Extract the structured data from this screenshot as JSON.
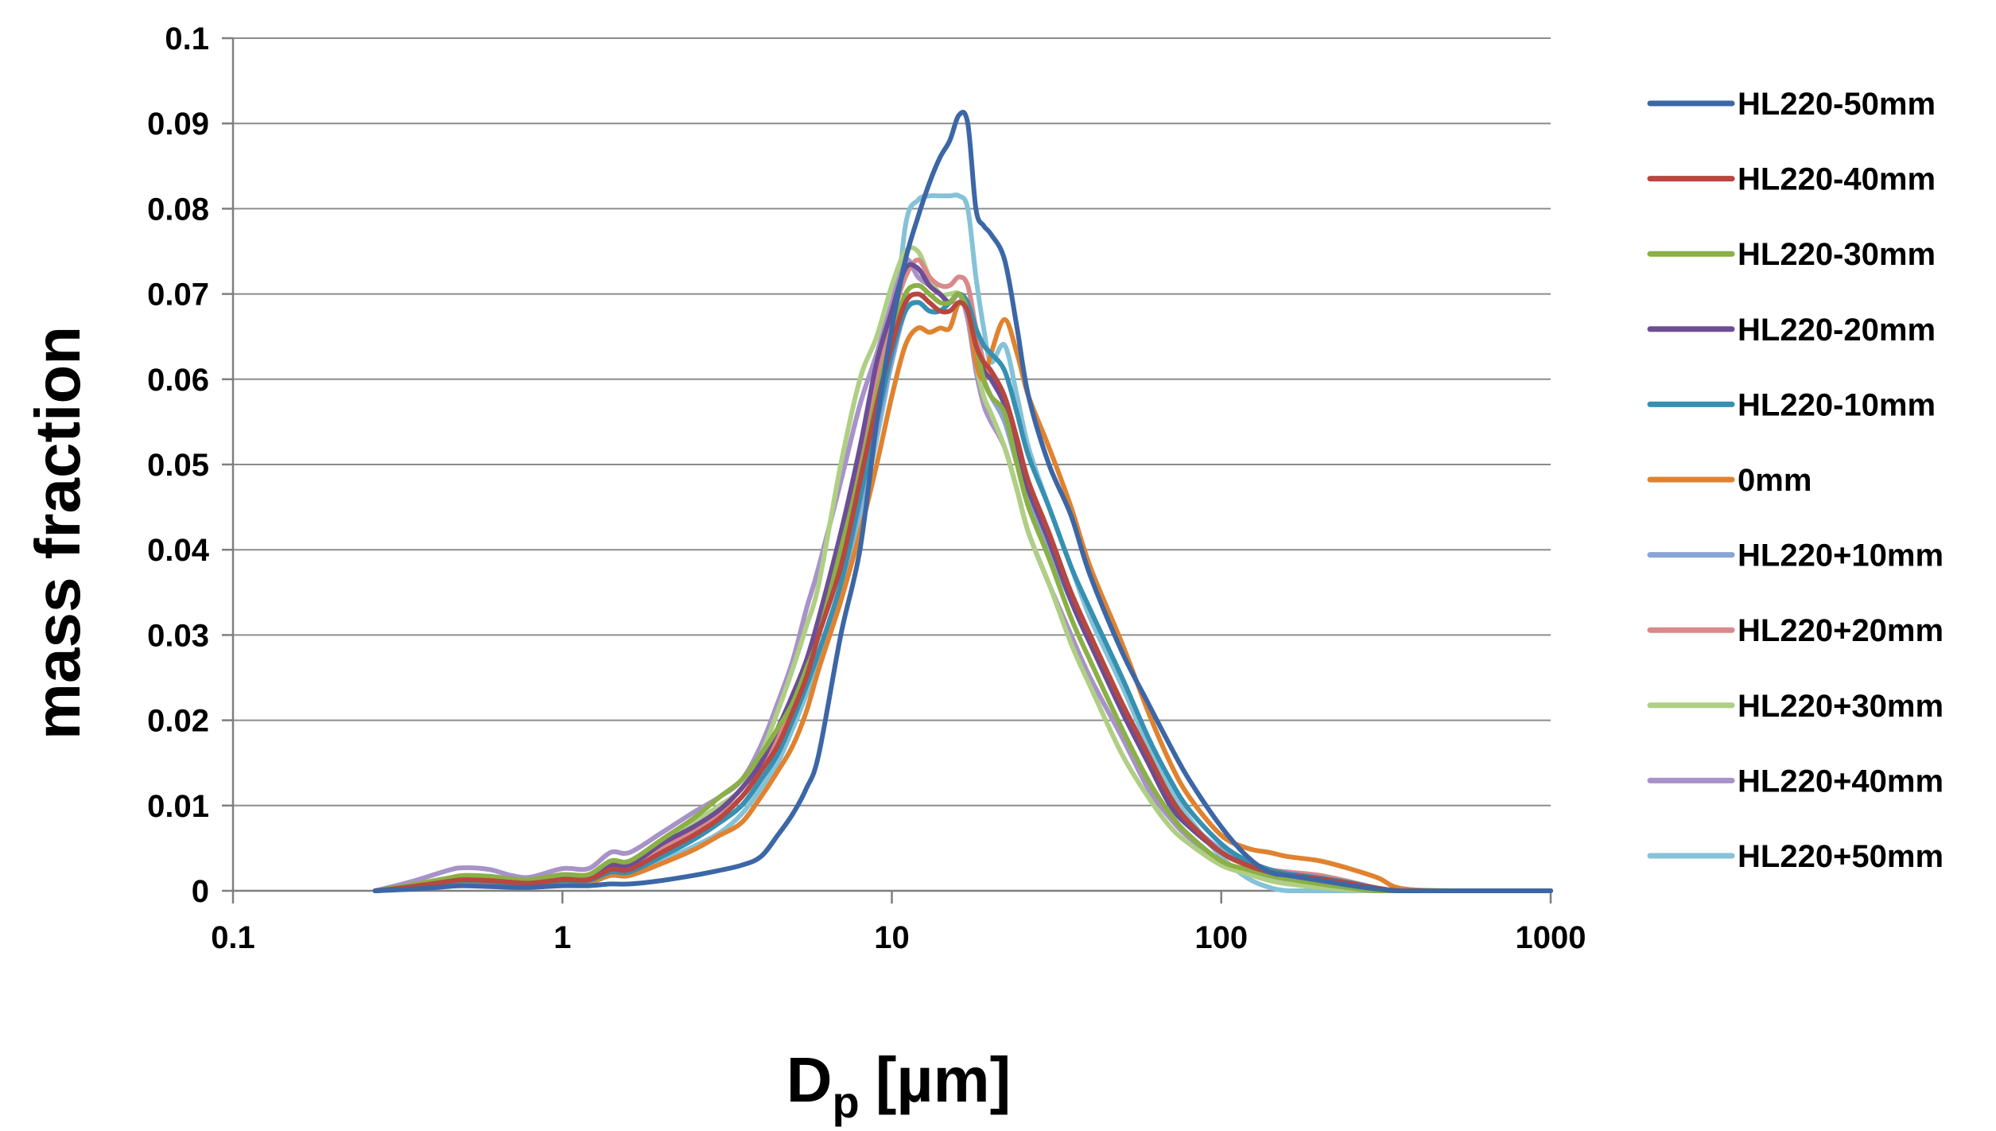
{
  "chart_data": {
    "type": "line",
    "title": "",
    "xlabel": "D",
    "xlabel_sub": "p",
    "xlabel_unit": "[µm]",
    "ylabel": "mass fraction",
    "xscale": "log",
    "xlim": [
      0.1,
      1000
    ],
    "ylim": [
      0,
      0.1
    ],
    "grid": "horizontal",
    "legend_position": "right",
    "x_ticks": [
      {
        "value": 0.1,
        "label": "0.1"
      },
      {
        "value": 1,
        "label": "1"
      },
      {
        "value": 10,
        "label": "10"
      },
      {
        "value": 100,
        "label": "100"
      },
      {
        "value": 1000,
        "label": "1000"
      }
    ],
    "y_ticks": [
      {
        "value": 0,
        "label": "0"
      },
      {
        "value": 0.01,
        "label": "0.01"
      },
      {
        "value": 0.02,
        "label": "0.02"
      },
      {
        "value": 0.03,
        "label": "0.03"
      },
      {
        "value": 0.04,
        "label": "0.04"
      },
      {
        "value": 0.05,
        "label": "0.05"
      },
      {
        "value": 0.06,
        "label": "0.06"
      },
      {
        "value": 0.07,
        "label": "0.07"
      },
      {
        "value": 0.08,
        "label": "0.08"
      },
      {
        "value": 0.09,
        "label": "0.09"
      },
      {
        "value": 0.1,
        "label": "0.1"
      }
    ],
    "x": [
      0.27,
      0.35,
      0.45,
      0.5,
      0.6,
      0.7,
      0.8,
      1.0,
      1.2,
      1.4,
      1.6,
      2.0,
      2.5,
      3.0,
      3.5,
      4.0,
      4.5,
      5.0,
      5.5,
      6.0,
      7.0,
      8.0,
      9.0,
      10.0,
      11.0,
      12.0,
      13.0,
      14.0,
      15.0,
      16.0,
      17.0,
      18.0,
      19.0,
      20.0,
      22.0,
      24.0,
      26.0,
      30.0,
      35.0,
      40.0,
      50.0,
      60.0,
      70.0,
      80.0,
      100.0,
      120.0,
      140.0,
      160.0,
      200.0,
      250.0,
      300.0,
      350.0,
      500.0,
      1000.0
    ],
    "series": [
      {
        "name": "HL220-50mm",
        "color": "#3c67a6",
        "values": [
          0,
          0.0002,
          0.0005,
          0.0006,
          0.0005,
          0.0004,
          0.0004,
          0.0006,
          0.0006,
          0.0008,
          0.0008,
          0.0012,
          0.0018,
          0.0024,
          0.003,
          0.004,
          0.0065,
          0.009,
          0.012,
          0.016,
          0.03,
          0.04,
          0.055,
          0.066,
          0.074,
          0.079,
          0.083,
          0.086,
          0.088,
          0.091,
          0.09,
          0.08,
          0.078,
          0.077,
          0.074,
          0.066,
          0.058,
          0.05,
          0.044,
          0.037,
          0.028,
          0.022,
          0.017,
          0.013,
          0.0075,
          0.004,
          0.0022,
          0.0018,
          0.0012,
          0.0006,
          0.0002,
          0,
          0,
          0
        ]
      },
      {
        "name": "HL220-40mm",
        "color": "#b7473f",
        "values": [
          0,
          0.0005,
          0.0011,
          0.0013,
          0.0012,
          0.001,
          0.0009,
          0.0013,
          0.0013,
          0.0025,
          0.0025,
          0.0045,
          0.0065,
          0.0085,
          0.011,
          0.014,
          0.017,
          0.021,
          0.025,
          0.03,
          0.038,
          0.048,
          0.057,
          0.064,
          0.069,
          0.07,
          0.069,
          0.068,
          0.068,
          0.069,
          0.068,
          0.064,
          0.062,
          0.061,
          0.058,
          0.053,
          0.048,
          0.042,
          0.035,
          0.03,
          0.022,
          0.016,
          0.011,
          0.008,
          0.0045,
          0.003,
          0.0022,
          0.0018,
          0.0014,
          0.0008,
          0.0003,
          0,
          0,
          0
        ]
      },
      {
        "name": "HL220-30mm",
        "color": "#8ab046",
        "values": [
          0,
          0.0007,
          0.0015,
          0.0018,
          0.0017,
          0.0014,
          0.0013,
          0.0019,
          0.0019,
          0.0035,
          0.0035,
          0.006,
          0.0085,
          0.011,
          0.013,
          0.016,
          0.019,
          0.022,
          0.026,
          0.03,
          0.04,
          0.049,
          0.058,
          0.065,
          0.07,
          0.071,
          0.07,
          0.069,
          0.069,
          0.07,
          0.068,
          0.064,
          0.06,
          0.058,
          0.056,
          0.05,
          0.045,
          0.039,
          0.032,
          0.027,
          0.019,
          0.013,
          0.009,
          0.0065,
          0.0035,
          0.0025,
          0.0018,
          0.0014,
          0.0008,
          0.0003,
          0,
          0,
          0,
          0
        ]
      },
      {
        "name": "HL220-20mm",
        "color": "#6c4e94",
        "values": [
          0,
          0.0006,
          0.0014,
          0.0016,
          0.0015,
          0.0013,
          0.0011,
          0.0016,
          0.0016,
          0.003,
          0.003,
          0.0055,
          0.0075,
          0.0095,
          0.012,
          0.015,
          0.019,
          0.023,
          0.027,
          0.032,
          0.042,
          0.052,
          0.062,
          0.068,
          0.073,
          0.073,
          0.071,
          0.07,
          0.069,
          0.07,
          0.068,
          0.064,
          0.061,
          0.06,
          0.057,
          0.052,
          0.047,
          0.041,
          0.034,
          0.029,
          0.021,
          0.015,
          0.01,
          0.0075,
          0.0045,
          0.003,
          0.002,
          0.0015,
          0.0009,
          0.0003,
          0,
          0,
          0,
          0
        ]
      },
      {
        "name": "HL220-10mm",
        "color": "#3690b1",
        "values": [
          0,
          0.0004,
          0.001,
          0.0012,
          0.0011,
          0.0009,
          0.0008,
          0.0012,
          0.0012,
          0.0022,
          0.0022,
          0.004,
          0.006,
          0.008,
          0.01,
          0.013,
          0.016,
          0.02,
          0.024,
          0.028,
          0.036,
          0.046,
          0.055,
          0.063,
          0.068,
          0.069,
          0.068,
          0.068,
          0.069,
          0.07,
          0.069,
          0.066,
          0.064,
          0.063,
          0.061,
          0.056,
          0.051,
          0.045,
          0.038,
          0.033,
          0.025,
          0.018,
          0.013,
          0.0095,
          0.0055,
          0.0035,
          0.0025,
          0.002,
          0.0015,
          0.0009,
          0.0003,
          0,
          0,
          0
        ]
      },
      {
        "name": "0mm",
        "color": "#e0822f",
        "values": [
          0,
          0.0003,
          0.0008,
          0.001,
          0.0009,
          0.0008,
          0.0007,
          0.001,
          0.001,
          0.0018,
          0.0018,
          0.0032,
          0.0048,
          0.0065,
          0.008,
          0.011,
          0.014,
          0.017,
          0.021,
          0.026,
          0.034,
          0.042,
          0.05,
          0.058,
          0.064,
          0.066,
          0.0655,
          0.066,
          0.066,
          0.069,
          0.068,
          0.062,
          0.06,
          0.063,
          0.067,
          0.063,
          0.058,
          0.052,
          0.045,
          0.038,
          0.029,
          0.021,
          0.015,
          0.011,
          0.0065,
          0.005,
          0.0045,
          0.004,
          0.0035,
          0.0025,
          0.0015,
          0.0003,
          0,
          0
        ]
      },
      {
        "name": "HL220+10mm",
        "color": "#8aa5d5",
        "values": [
          0,
          0.0004,
          0.001,
          0.0012,
          0.0011,
          0.0009,
          0.0008,
          0.0012,
          0.0012,
          0.0022,
          0.0022,
          0.004,
          0.006,
          0.008,
          0.01,
          0.013,
          0.016,
          0.02,
          0.024,
          0.028,
          0.036,
          0.045,
          0.054,
          0.062,
          0.068,
          0.069,
          0.068,
          0.068,
          0.069,
          0.07,
          0.068,
          0.063,
          0.06,
          0.058,
          0.055,
          0.05,
          0.046,
          0.04,
          0.034,
          0.029,
          0.022,
          0.016,
          0.011,
          0.008,
          0.0048,
          0.0032,
          0.0022,
          0.0017,
          0.0011,
          0.0005,
          0.0001,
          0,
          0,
          0
        ]
      },
      {
        "name": "HL220+20mm",
        "color": "#d9898a",
        "values": [
          0,
          0.0006,
          0.0013,
          0.0015,
          0.0014,
          0.0012,
          0.0011,
          0.0015,
          0.0015,
          0.0028,
          0.0028,
          0.005,
          0.007,
          0.009,
          0.011,
          0.014,
          0.018,
          0.022,
          0.026,
          0.031,
          0.041,
          0.051,
          0.06,
          0.067,
          0.072,
          0.074,
          0.072,
          0.071,
          0.071,
          0.072,
          0.071,
          0.066,
          0.062,
          0.06,
          0.057,
          0.052,
          0.047,
          0.041,
          0.035,
          0.03,
          0.022,
          0.016,
          0.011,
          0.008,
          0.0048,
          0.0035,
          0.0025,
          0.0022,
          0.0018,
          0.001,
          0.0003,
          0,
          0,
          0
        ]
      },
      {
        "name": "HL220+30mm",
        "color": "#afcf84",
        "values": [
          0,
          0.0006,
          0.0014,
          0.0017,
          0.0016,
          0.0013,
          0.0012,
          0.0017,
          0.0017,
          0.0032,
          0.0032,
          0.0058,
          0.008,
          0.01,
          0.012,
          0.016,
          0.021,
          0.026,
          0.031,
          0.036,
          0.05,
          0.06,
          0.065,
          0.071,
          0.075,
          0.075,
          0.072,
          0.07,
          0.07,
          0.07,
          0.068,
          0.062,
          0.058,
          0.056,
          0.052,
          0.047,
          0.042,
          0.036,
          0.029,
          0.024,
          0.016,
          0.011,
          0.0075,
          0.0055,
          0.003,
          0.002,
          0.0012,
          0.0008,
          0.0004,
          0.0001,
          0,
          0,
          0,
          0
        ]
      },
      {
        "name": "HL220+40mm",
        "color": "#a892c9",
        "values": [
          0,
          0.0011,
          0.0024,
          0.0027,
          0.0025,
          0.0018,
          0.0016,
          0.0026,
          0.0026,
          0.0045,
          0.0045,
          0.0068,
          0.0092,
          0.011,
          0.013,
          0.017,
          0.022,
          0.027,
          0.033,
          0.038,
          0.048,
          0.057,
          0.063,
          0.069,
          0.074,
          0.072,
          0.071,
          0.07,
          0.069,
          0.07,
          0.067,
          0.061,
          0.057,
          0.055,
          0.052,
          0.047,
          0.042,
          0.036,
          0.03,
          0.025,
          0.018,
          0.012,
          0.0085,
          0.0062,
          0.0035,
          0.0022,
          0.0015,
          0.0011,
          0.0007,
          0.0003,
          0,
          0,
          0,
          0
        ]
      },
      {
        "name": "HL220+50mm",
        "color": "#85c2d8",
        "values": [
          0,
          0.0003,
          0.0008,
          0.001,
          0.0009,
          0.0008,
          0.0007,
          0.0009,
          0.0009,
          0.0018,
          0.0018,
          0.0035,
          0.0052,
          0.0068,
          0.009,
          0.012,
          0.015,
          0.019,
          0.023,
          0.027,
          0.034,
          0.044,
          0.053,
          0.063,
          0.078,
          0.081,
          0.0815,
          0.0815,
          0.0815,
          0.0815,
          0.08,
          0.072,
          0.066,
          0.062,
          0.064,
          0.058,
          0.052,
          0.045,
          0.038,
          0.032,
          0.024,
          0.017,
          0.012,
          0.0085,
          0.004,
          0.0015,
          0.0004,
          0,
          0,
          0,
          0,
          0,
          0,
          0
        ]
      }
    ]
  }
}
